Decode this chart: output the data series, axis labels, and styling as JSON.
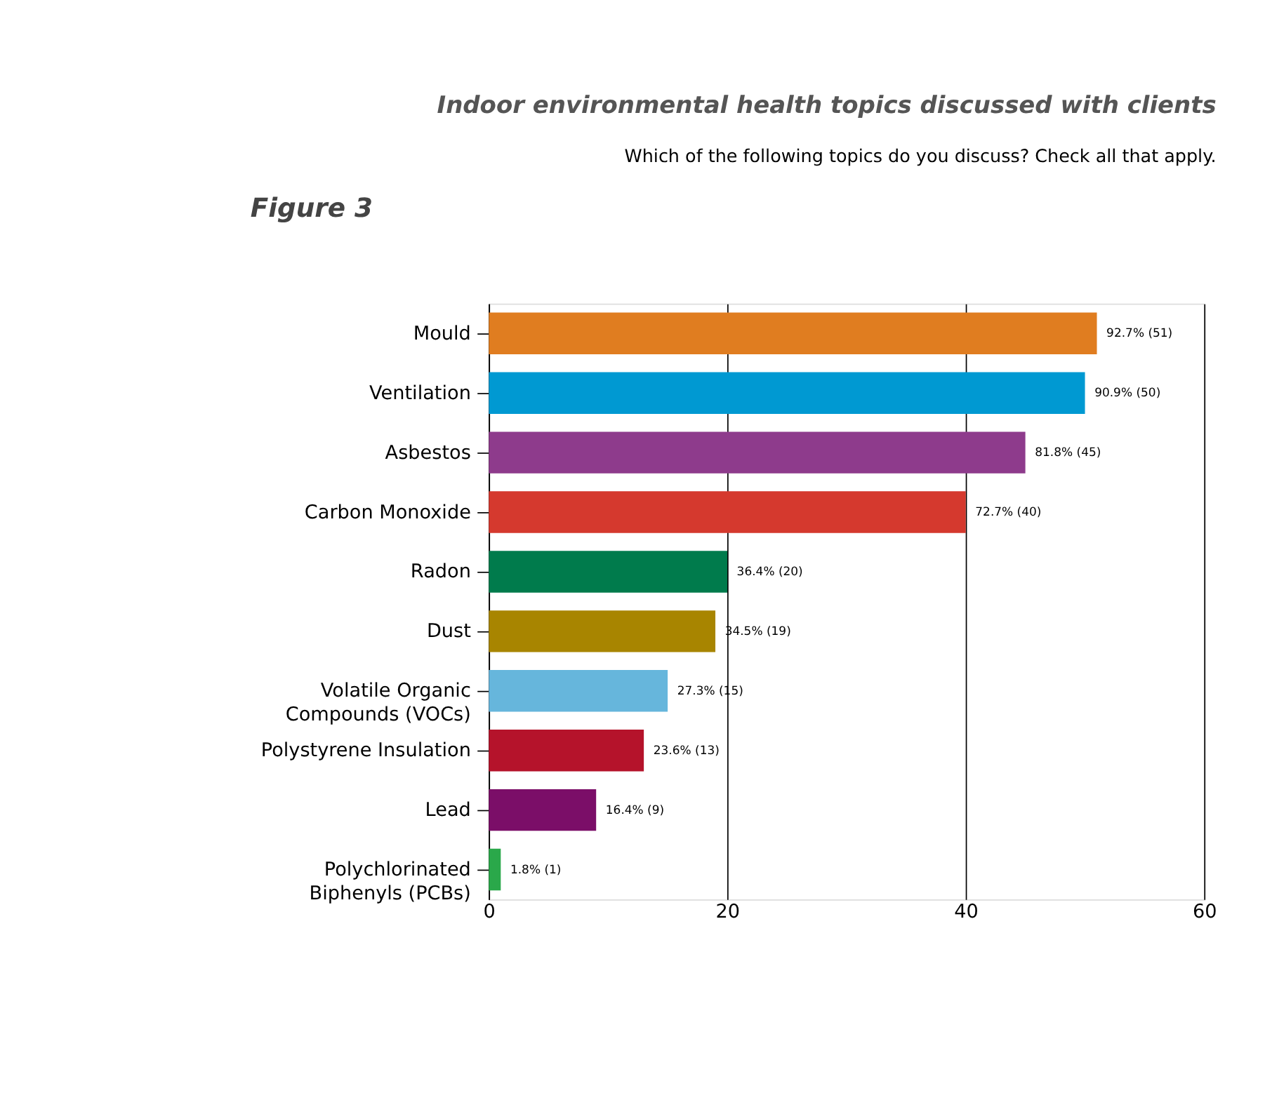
{
  "chart_data": {
    "type": "bar",
    "orientation": "horizontal",
    "title": "Indoor environmental health topics discussed with clients",
    "subtitle": "Which of the following topics do you discuss? Check all that apply.",
    "annotations": [
      "Figure 3"
    ],
    "categories": [
      "Mould",
      "Ventilation",
      "Asbestos",
      "Carbon Monoxide",
      "Radon",
      "Dust",
      "Volatile Organic Compounds (VOCs)",
      "Polystyrene Insulation",
      "Lead",
      "Polychlorinated Biphenyls (PCBs)"
    ],
    "values": [
      51,
      50,
      45,
      40,
      20,
      19,
      15,
      13,
      9,
      1
    ],
    "colors": [
      "#e07d20",
      "#0099d2",
      "#8e3b8c",
      "#d5392e",
      "#007b4c",
      "#a88500",
      "#66b6dc",
      "#b5132b",
      "#7b0e68",
      "#2aa84a"
    ],
    "value_labels": [
      "92.7% (51)",
      "90.9% (50)",
      "81.8% (45)",
      "72.7% (40)",
      "36.4% (20)",
      "34.5% (19)",
      "27.3% (15)",
      "23.6% (13)",
      "16.4% (9)",
      "1.8% (1)"
    ],
    "xlim": [
      0,
      60
    ],
    "xticks": [
      0,
      20,
      40,
      60
    ],
    "grid": "x"
  }
}
